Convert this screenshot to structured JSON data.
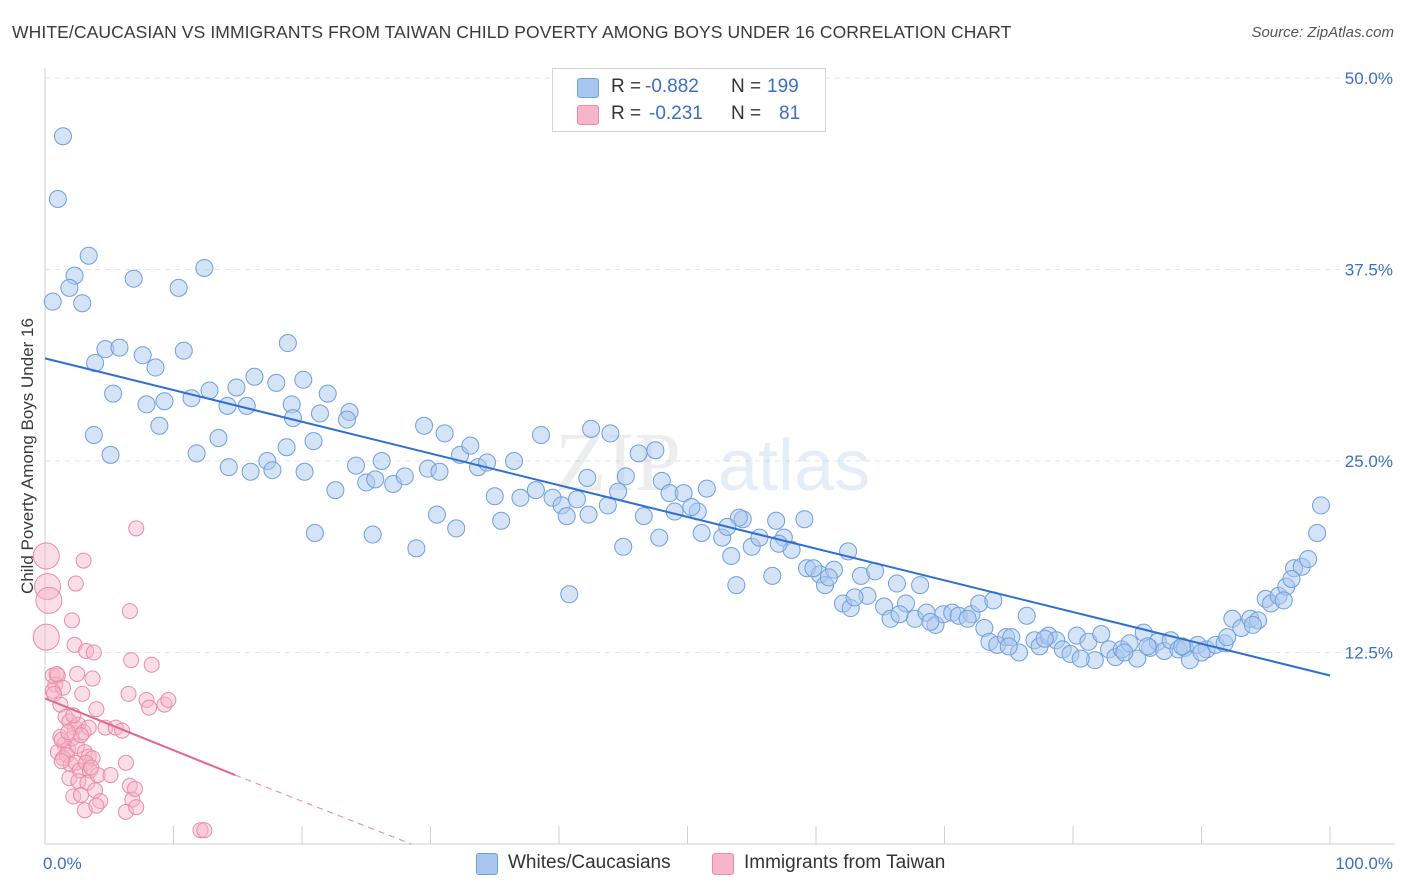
{
  "header": {
    "title": "WHITE/CAUCASIAN VS IMMIGRANTS FROM TAIWAN CHILD POVERTY AMONG BOYS UNDER 16 CORRELATION CHART",
    "source": "Source: ZipAtlas.com"
  },
  "legend": {
    "rows": [
      {
        "r_label": "R =",
        "r_value": "-0.882",
        "n_label": "N =",
        "n_value": "199",
        "color": "#a9c7ee"
      },
      {
        "r_label": "R =",
        "r_value": "-0.231",
        "n_label": "N =",
        "n_value": "81",
        "color": "#f4b6c8"
      }
    ]
  },
  "bottom_legend": {
    "items": [
      {
        "label": "Whites/Caucasians",
        "color": "#a9c7ee"
      },
      {
        "label": "Immigrants from Taiwan",
        "color": "#f4b6c8"
      }
    ]
  },
  "watermark": {
    "zip": "ZIP",
    "atlas": "atlas"
  },
  "chart_data": {
    "type": "scatter",
    "title": "WHITE/CAUCASIAN VS IMMIGRANTS FROM TAIWAN CHILD POVERTY AMONG BOYS UNDER 16 CORRELATION CHART",
    "xlabel": "",
    "ylabel": "Child Poverty Among Boys Under 16",
    "xlim": [
      0,
      100
    ],
    "ylim": [
      0,
      50
    ],
    "x_tick_labels": [
      "0.0%",
      "100.0%"
    ],
    "y_tick_labels": [
      "12.5%",
      "25.0%",
      "37.5%",
      "50.0%"
    ],
    "y_ticks": [
      12.5,
      25,
      37.5,
      50
    ],
    "grid": true,
    "colors": {
      "white": "#a9c7ee",
      "white_edge": "#6f9fdc",
      "white_line": "#2f6fd0",
      "taiwan": "#f4b6c8",
      "taiwan_edge": "#ea8aa6",
      "taiwan_line": "#e0688f"
    },
    "series": [
      {
        "name": "Whites/Caucasians",
        "trend": {
          "x": [
            0,
            100
          ],
          "y": [
            31.7,
            11.0
          ]
        },
        "points": [
          [
            1.4,
            46.2
          ],
          [
            1.0,
            42.1
          ],
          [
            3.4,
            38.4
          ],
          [
            2.3,
            37.1
          ],
          [
            1.9,
            36.3
          ],
          [
            0.6,
            35.4
          ],
          [
            2.9,
            35.3
          ],
          [
            6.9,
            36.9
          ],
          [
            10.4,
            36.3
          ],
          [
            12.4,
            37.6
          ],
          [
            4.7,
            32.3
          ],
          [
            5.8,
            32.4
          ],
          [
            7.6,
            31.9
          ],
          [
            8.6,
            31.1
          ],
          [
            10.8,
            32.2
          ],
          [
            3.9,
            31.4
          ],
          [
            18.9,
            32.7
          ],
          [
            5.3,
            29.4
          ],
          [
            7.9,
            28.7
          ],
          [
            9.3,
            28.9
          ],
          [
            11.4,
            29.1
          ],
          [
            12.8,
            29.6
          ],
          [
            14.9,
            29.8
          ],
          [
            16.3,
            30.5
          ],
          [
            18.0,
            30.1
          ],
          [
            20.1,
            30.3
          ],
          [
            22.0,
            29.4
          ],
          [
            14.2,
            28.6
          ],
          [
            15.7,
            28.6
          ],
          [
            19.2,
            28.7
          ],
          [
            21.4,
            28.1
          ],
          [
            23.7,
            28.2
          ],
          [
            8.9,
            27.3
          ],
          [
            13.5,
            26.5
          ],
          [
            14.3,
            24.6
          ],
          [
            16.0,
            24.3
          ],
          [
            17.3,
            25.0
          ],
          [
            17.7,
            24.4
          ],
          [
            18.8,
            25.9
          ],
          [
            19.3,
            27.8
          ],
          [
            20.2,
            24.3
          ],
          [
            20.9,
            26.3
          ],
          [
            23.5,
            27.7
          ],
          [
            24.2,
            24.7
          ],
          [
            25.0,
            23.6
          ],
          [
            25.7,
            23.8
          ],
          [
            26.2,
            25.0
          ],
          [
            27.1,
            23.5
          ],
          [
            28.0,
            24.0
          ],
          [
            29.5,
            27.3
          ],
          [
            29.8,
            24.5
          ],
          [
            31.1,
            26.8
          ],
          [
            30.7,
            24.3
          ],
          [
            32.3,
            25.4
          ],
          [
            33.1,
            26.0
          ],
          [
            33.7,
            24.6
          ],
          [
            34.4,
            24.9
          ],
          [
            35.0,
            22.7
          ],
          [
            36.5,
            25.0
          ],
          [
            37.0,
            22.6
          ],
          [
            38.2,
            23.1
          ],
          [
            38.6,
            26.7
          ],
          [
            39.5,
            22.6
          ],
          [
            40.2,
            22.1
          ],
          [
            40.6,
            21.4
          ],
          [
            41.4,
            22.5
          ],
          [
            42.3,
            21.5
          ],
          [
            42.2,
            23.9
          ],
          [
            43.8,
            22.1
          ],
          [
            44.6,
            23.0
          ],
          [
            45.0,
            19.4
          ],
          [
            45.2,
            24.0
          ],
          [
            46.2,
            25.5
          ],
          [
            46.6,
            21.4
          ],
          [
            47.8,
            20.0
          ],
          [
            48.0,
            23.7
          ],
          [
            48.6,
            22.9
          ],
          [
            49.7,
            22.9
          ],
          [
            50.8,
            21.7
          ],
          [
            51.1,
            20.3
          ],
          [
            51.5,
            23.2
          ],
          [
            52.7,
            20.0
          ],
          [
            53.4,
            18.8
          ],
          [
            53.8,
            16.9
          ],
          [
            54.3,
            21.2
          ],
          [
            55.0,
            19.4
          ],
          [
            55.6,
            20.0
          ],
          [
            56.6,
            17.5
          ],
          [
            56.9,
            21.1
          ],
          [
            57.5,
            20.0
          ],
          [
            58.1,
            19.2
          ],
          [
            59.1,
            21.2
          ],
          [
            59.3,
            18.0
          ],
          [
            60.3,
            17.6
          ],
          [
            60.7,
            16.9
          ],
          [
            61.4,
            17.9
          ],
          [
            62.1,
            15.7
          ],
          [
            62.7,
            15.4
          ],
          [
            63.5,
            17.5
          ],
          [
            64.0,
            16.2
          ],
          [
            64.6,
            17.8
          ],
          [
            65.3,
            15.5
          ],
          [
            65.8,
            14.7
          ],
          [
            66.3,
            17.0
          ],
          [
            67.0,
            15.7
          ],
          [
            67.7,
            14.7
          ],
          [
            68.1,
            16.9
          ],
          [
            68.6,
            15.1
          ],
          [
            69.3,
            14.3
          ],
          [
            69.9,
            15.0
          ],
          [
            70.6,
            15.1
          ],
          [
            71.1,
            14.9
          ],
          [
            72.1,
            15.0
          ],
          [
            72.7,
            15.7
          ],
          [
            73.1,
            14.1
          ],
          [
            73.5,
            13.2
          ],
          [
            74.1,
            13.0
          ],
          [
            74.8,
            13.5
          ],
          [
            75.2,
            13.5
          ],
          [
            75.8,
            12.5
          ],
          [
            76.4,
            14.9
          ],
          [
            77.0,
            13.3
          ],
          [
            77.4,
            12.9
          ],
          [
            78.1,
            13.6
          ],
          [
            78.7,
            13.3
          ],
          [
            79.2,
            12.7
          ],
          [
            79.8,
            12.4
          ],
          [
            80.3,
            13.6
          ],
          [
            81.2,
            13.2
          ],
          [
            81.7,
            12.0
          ],
          [
            82.2,
            13.7
          ],
          [
            82.8,
            12.7
          ],
          [
            83.3,
            12.2
          ],
          [
            83.8,
            12.7
          ],
          [
            84.4,
            13.1
          ],
          [
            85.0,
            12.1
          ],
          [
            85.5,
            13.8
          ],
          [
            86.0,
            12.8
          ],
          [
            86.6,
            13.2
          ],
          [
            87.1,
            12.6
          ],
          [
            87.6,
            13.3
          ],
          [
            88.2,
            12.7
          ],
          [
            88.7,
            12.8
          ],
          [
            89.1,
            12.0
          ],
          [
            89.7,
            13.0
          ],
          [
            90.4,
            12.7
          ],
          [
            91.1,
            13.0
          ],
          [
            91.8,
            13.1
          ],
          [
            92.4,
            14.7
          ],
          [
            93.1,
            14.1
          ],
          [
            93.8,
            14.7
          ],
          [
            94.4,
            14.6
          ],
          [
            95.0,
            16.0
          ],
          [
            95.4,
            15.7
          ],
          [
            96.0,
            16.2
          ],
          [
            96.6,
            16.8
          ],
          [
            97.2,
            18.0
          ],
          [
            97.8,
            18.1
          ],
          [
            98.3,
            18.6
          ],
          [
            99.0,
            20.3
          ],
          [
            99.3,
            22.1
          ],
          [
            3.8,
            26.7
          ],
          [
            5.1,
            25.4
          ],
          [
            11.8,
            25.5
          ],
          [
            22.6,
            23.1
          ],
          [
            21.0,
            20.3
          ],
          [
            25.5,
            20.2
          ],
          [
            28.9,
            19.3
          ],
          [
            30.5,
            21.5
          ],
          [
            32.0,
            20.6
          ],
          [
            35.5,
            21.1
          ],
          [
            40.8,
            16.3
          ],
          [
            42.5,
            27.1
          ],
          [
            44.0,
            26.8
          ],
          [
            47.5,
            25.7
          ],
          [
            49.0,
            21.7
          ],
          [
            54.0,
            21.3
          ],
          [
            57.1,
            19.6
          ],
          [
            59.8,
            18.0
          ],
          [
            61.0,
            17.4
          ],
          [
            62.5,
            19.1
          ],
          [
            63.0,
            16.1
          ],
          [
            66.5,
            15.0
          ],
          [
            68.9,
            14.5
          ],
          [
            71.8,
            14.7
          ],
          [
            73.8,
            15.9
          ],
          [
            75.0,
            12.9
          ],
          [
            77.8,
            13.4
          ],
          [
            80.6,
            12.1
          ],
          [
            84.0,
            12.5
          ],
          [
            85.8,
            12.9
          ],
          [
            88.5,
            12.9
          ],
          [
            90.0,
            12.5
          ],
          [
            92.0,
            13.5
          ],
          [
            94.0,
            14.3
          ],
          [
            96.4,
            15.9
          ],
          [
            97.0,
            17.3
          ],
          [
            50.3,
            22.0
          ],
          [
            53.1,
            20.7
          ]
        ]
      },
      {
        "name": "Immigrants from Taiwan",
        "trend": {
          "x": [
            0,
            14.8
          ],
          "y": [
            9.5,
            4.5
          ]
        },
        "trend_extension": {
          "x": [
            14.8,
            28.5
          ],
          "y": [
            4.5,
            0
          ]
        },
        "points": [
          [
            0.1,
            18.8
          ],
          [
            0.2,
            16.8
          ],
          [
            0.3,
            15.9
          ],
          [
            0.1,
            13.5
          ],
          [
            2.4,
            17.0
          ],
          [
            3.0,
            18.5
          ],
          [
            7.1,
            20.6
          ],
          [
            2.1,
            14.6
          ],
          [
            6.6,
            15.2
          ],
          [
            0.6,
            11.0
          ],
          [
            2.3,
            13.0
          ],
          [
            3.2,
            12.6
          ],
          [
            3.8,
            12.5
          ],
          [
            6.7,
            12.0
          ],
          [
            8.3,
            11.7
          ],
          [
            1.0,
            11.0
          ],
          [
            0.8,
            10.4
          ],
          [
            0.6,
            10.0
          ],
          [
            1.4,
            10.2
          ],
          [
            2.5,
            11.1
          ],
          [
            2.9,
            9.8
          ],
          [
            3.7,
            10.8
          ],
          [
            6.5,
            9.8
          ],
          [
            7.9,
            9.4
          ],
          [
            8.1,
            8.9
          ],
          [
            9.3,
            9.1
          ],
          [
            9.6,
            9.4
          ],
          [
            0.7,
            9.8
          ],
          [
            1.2,
            9.1
          ],
          [
            1.6,
            8.3
          ],
          [
            1.9,
            8.0
          ],
          [
            2.3,
            7.6
          ],
          [
            2.6,
            7.8
          ],
          [
            3.0,
            7.3
          ],
          [
            3.4,
            7.6
          ],
          [
            4.0,
            8.8
          ],
          [
            4.7,
            7.6
          ],
          [
            5.5,
            7.6
          ],
          [
            6.0,
            7.4
          ],
          [
            1.2,
            7.0
          ],
          [
            1.5,
            6.5
          ],
          [
            1.8,
            6.2
          ],
          [
            2.1,
            6.9
          ],
          [
            2.5,
            6.4
          ],
          [
            2.8,
            7.1
          ],
          [
            3.1,
            6.0
          ],
          [
            3.4,
            5.7
          ],
          [
            3.7,
            5.6
          ],
          [
            1.0,
            6.0
          ],
          [
            1.4,
            5.6
          ],
          [
            1.7,
            5.8
          ],
          [
            2.0,
            5.2
          ],
          [
            2.4,
            5.3
          ],
          [
            2.7,
            4.8
          ],
          [
            3.2,
            5.3
          ],
          [
            3.5,
            4.8
          ],
          [
            1.3,
            5.4
          ],
          [
            1.9,
            4.3
          ],
          [
            2.6,
            4.1
          ],
          [
            3.3,
            4.0
          ],
          [
            4.1,
            4.5
          ],
          [
            5.1,
            4.5
          ],
          [
            6.3,
            5.3
          ],
          [
            6.6,
            3.8
          ],
          [
            2.2,
            3.1
          ],
          [
            2.8,
            3.2
          ],
          [
            3.9,
            3.5
          ],
          [
            4.3,
            2.8
          ],
          [
            6.8,
            2.9
          ],
          [
            7.0,
            3.6
          ],
          [
            3.1,
            2.2
          ],
          [
            4.0,
            2.5
          ],
          [
            6.3,
            2.1
          ],
          [
            7.1,
            2.4
          ],
          [
            12.1,
            0.9
          ],
          [
            12.4,
            0.9
          ],
          [
            1.3,
            6.8
          ],
          [
            2.2,
            8.4
          ],
          [
            3.6,
            5.0
          ],
          [
            0.9,
            11.1
          ],
          [
            1.8,
            7.3
          ]
        ]
      }
    ]
  }
}
